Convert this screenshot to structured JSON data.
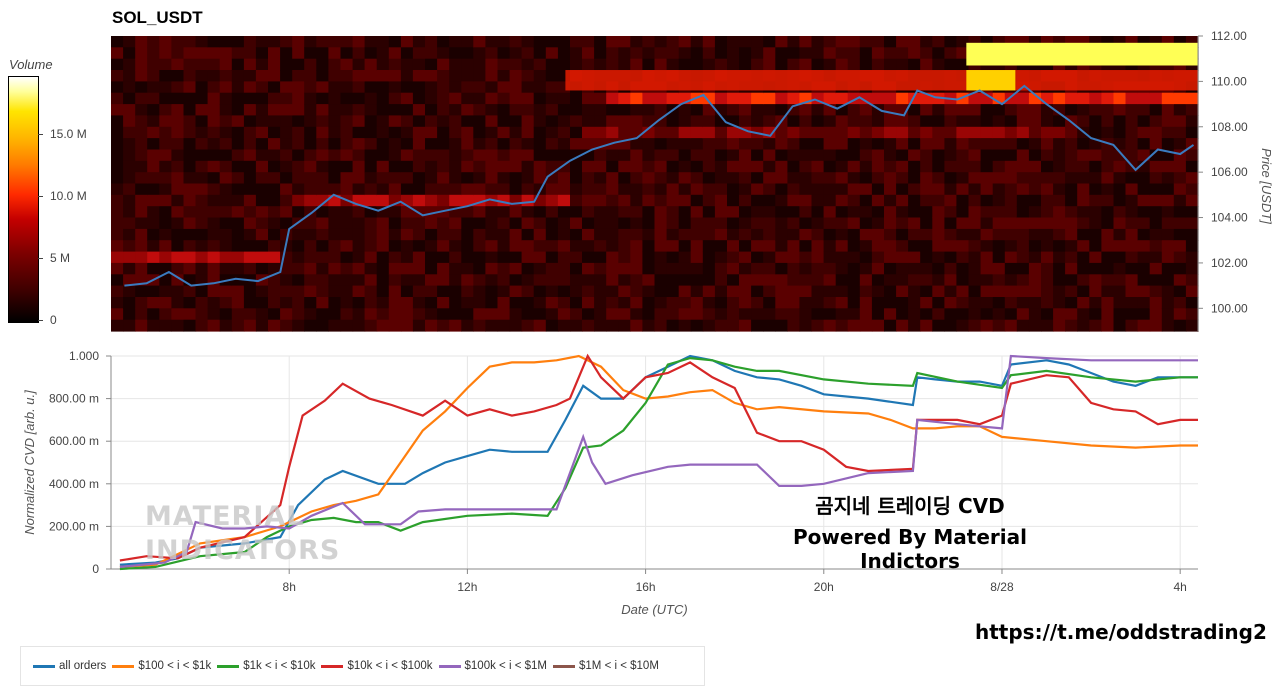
{
  "title": "SOL_USDT",
  "colorbar": {
    "title": "Volume",
    "ticks": [
      "15.0 M",
      "10.0 M",
      "5 M",
      "0"
    ],
    "colors": [
      "#000000",
      "#7d0000",
      "#c40000",
      "#ff2a00",
      "#ff7a00",
      "#ffb000",
      "#ffe500",
      "#ffff9a",
      "#ffffff"
    ]
  },
  "watermark": {
    "line1": "곰지네 트레이딩 CVD",
    "line2": "Powered By Material Indictors"
  },
  "logo_text": {
    "line1": "MATERIAL",
    "line2": "INDICATORS"
  },
  "telegram_link": "https://t.me/oddstrading2",
  "chart_data": [
    {
      "type": "heatmap",
      "title": "SOL_USDT",
      "ylabel": "Price [USDT]",
      "ylim": [
        99,
        112
      ],
      "y_ticks": [
        "112.00",
        "110.00",
        "108.00",
        "106.00",
        "104.00",
        "102.00",
        "100.00"
      ],
      "y_tick_values": [
        112,
        110,
        108,
        106,
        104,
        102,
        100
      ],
      "colorbar_range": [
        0,
        19000000
      ],
      "series": [
        {
          "name": "Price",
          "color": "#3a7bbf",
          "time_hours": [
            4.3,
            4.8,
            5.3,
            5.8,
            6.3,
            6.8,
            7.3,
            7.8,
            8.0,
            8.5,
            9.0,
            9.5,
            10.0,
            10.5,
            11.0,
            11.5,
            12.0,
            12.5,
            13.0,
            13.5,
            13.8,
            14.3,
            14.8,
            15.3,
            15.8,
            16.3,
            16.8,
            17.3,
            17.8,
            18.3,
            18.8,
            19.3,
            19.8,
            20.3,
            20.8,
            21.3,
            21.8,
            22.1,
            22.5,
            23.0,
            23.5,
            24.0,
            24.5,
            25.0,
            25.5,
            26.0,
            26.5,
            27.0,
            27.5,
            28.0,
            28.3
          ],
          "values": [
            101.0,
            101.1,
            101.6,
            101.0,
            101.1,
            101.3,
            101.2,
            101.6,
            103.5,
            104.2,
            105.0,
            104.6,
            104.3,
            104.7,
            104.1,
            104.3,
            104.5,
            104.8,
            104.6,
            104.7,
            105.8,
            106.5,
            107.0,
            107.3,
            107.5,
            108.3,
            109.0,
            109.4,
            108.2,
            107.8,
            107.6,
            108.9,
            109.2,
            108.8,
            109.3,
            108.7,
            108.5,
            109.6,
            109.3,
            109.2,
            109.6,
            109.0,
            109.8,
            109.0,
            108.3,
            107.5,
            107.2,
            106.1,
            107.0,
            106.8,
            107.2
          ]
        }
      ]
    },
    {
      "type": "line",
      "xlabel": "Date (UTC)",
      "ylabel": "Normalized CVD [arb. u.]",
      "ylim": [
        0,
        1.0
      ],
      "xlim": [
        4.0,
        28.4
      ],
      "y_ticks": [
        "1.000",
        "800.00 m",
        "600.00 m",
        "400.00 m",
        "200.00 m",
        "0"
      ],
      "y_tick_values": [
        1.0,
        0.8,
        0.6,
        0.4,
        0.2,
        0
      ],
      "x_ticks": [
        "8h",
        "12h",
        "16h",
        "20h",
        "8/28",
        "4h"
      ],
      "x_tick_values": [
        8,
        12,
        16,
        20,
        24,
        28
      ],
      "legend_position": "bottom",
      "series": [
        {
          "name": "all orders",
          "color": "#1f77b4",
          "x": [
            4.2,
            5.0,
            5.5,
            6.0,
            7.0,
            7.8,
            8.2,
            8.8,
            9.2,
            10.0,
            10.6,
            11.0,
            11.5,
            12.0,
            12.5,
            13.0,
            13.8,
            14.2,
            14.6,
            15.0,
            15.5,
            16.0,
            16.5,
            17.0,
            17.5,
            18.0,
            18.5,
            19.0,
            19.5,
            20.0,
            21.0,
            22.0,
            22.1,
            22.5,
            23.0,
            23.5,
            24.0,
            24.2,
            25.0,
            25.5,
            26.0,
            26.5,
            27.0,
            27.5,
            28.0,
            28.4
          ],
          "values": [
            0.02,
            0.03,
            0.05,
            0.1,
            0.12,
            0.15,
            0.3,
            0.42,
            0.46,
            0.4,
            0.4,
            0.45,
            0.5,
            0.53,
            0.56,
            0.55,
            0.55,
            0.7,
            0.86,
            0.8,
            0.8,
            0.9,
            0.95,
            1.0,
            0.98,
            0.93,
            0.9,
            0.89,
            0.86,
            0.82,
            0.8,
            0.77,
            0.9,
            0.89,
            0.88,
            0.88,
            0.86,
            0.96,
            0.98,
            0.96,
            0.92,
            0.88,
            0.86,
            0.9,
            0.9,
            0.9
          ]
        },
        {
          "name": "$100 < i < $1k",
          "color": "#ff7f0e",
          "x": [
            4.2,
            5.0,
            6.0,
            7.0,
            7.8,
            8.5,
            9.0,
            9.5,
            10.0,
            10.5,
            11.0,
            11.5,
            12.0,
            12.5,
            13.0,
            13.5,
            14.0,
            14.5,
            15.0,
            15.5,
            16.0,
            16.5,
            17.0,
            17.5,
            18.0,
            18.5,
            19.0,
            20.0,
            21.0,
            21.5,
            22.0,
            22.5,
            23.0,
            23.5,
            24.0,
            25.0,
            26.0,
            27.0,
            28.0,
            28.4
          ],
          "values": [
            0.01,
            0.02,
            0.12,
            0.15,
            0.2,
            0.27,
            0.3,
            0.32,
            0.35,
            0.5,
            0.65,
            0.74,
            0.85,
            0.95,
            0.97,
            0.97,
            0.98,
            1.0,
            0.95,
            0.84,
            0.8,
            0.81,
            0.83,
            0.84,
            0.78,
            0.75,
            0.76,
            0.74,
            0.73,
            0.7,
            0.66,
            0.66,
            0.67,
            0.67,
            0.62,
            0.6,
            0.58,
            0.57,
            0.58,
            0.58
          ]
        },
        {
          "name": "$1k < i < $10k",
          "color": "#2ca02c",
          "x": [
            4.2,
            5.0,
            6.0,
            7.0,
            7.5,
            8.0,
            8.5,
            9.0,
            9.5,
            10.0,
            10.5,
            11.0,
            12.0,
            13.0,
            13.8,
            14.2,
            14.6,
            15.0,
            15.5,
            16.0,
            16.5,
            17.0,
            17.5,
            18.0,
            18.5,
            19.0,
            20.0,
            21.0,
            22.0,
            22.1,
            23.0,
            24.0,
            24.2,
            25.0,
            26.0,
            27.0,
            28.0,
            28.4
          ],
          "values": [
            0.0,
            0.01,
            0.06,
            0.08,
            0.15,
            0.2,
            0.23,
            0.24,
            0.22,
            0.22,
            0.18,
            0.22,
            0.25,
            0.26,
            0.25,
            0.38,
            0.57,
            0.58,
            0.65,
            0.78,
            0.96,
            0.99,
            0.98,
            0.95,
            0.93,
            0.93,
            0.89,
            0.87,
            0.86,
            0.92,
            0.88,
            0.85,
            0.91,
            0.93,
            0.9,
            0.88,
            0.9,
            0.9
          ]
        },
        {
          "name": "$10k < i < $100k",
          "color": "#d62728",
          "x": [
            4.2,
            4.8,
            5.5,
            6.0,
            7.0,
            7.8,
            8.0,
            8.3,
            8.8,
            9.2,
            9.8,
            10.3,
            11.0,
            11.5,
            12.0,
            12.5,
            13.0,
            13.5,
            14.0,
            14.3,
            14.7,
            15.0,
            15.5,
            16.0,
            16.5,
            17.0,
            17.5,
            18.0,
            18.5,
            19.0,
            19.5,
            20.0,
            20.5,
            21.0,
            22.0,
            22.1,
            23.0,
            23.5,
            24.0,
            24.2,
            25.0,
            25.5,
            26.0,
            26.5,
            27.0,
            27.5,
            28.0,
            28.4
          ],
          "values": [
            0.04,
            0.06,
            0.05,
            0.1,
            0.15,
            0.3,
            0.48,
            0.72,
            0.79,
            0.87,
            0.8,
            0.77,
            0.72,
            0.79,
            0.72,
            0.75,
            0.72,
            0.74,
            0.77,
            0.8,
            1.0,
            0.9,
            0.8,
            0.9,
            0.92,
            0.97,
            0.9,
            0.85,
            0.64,
            0.6,
            0.6,
            0.56,
            0.48,
            0.46,
            0.47,
            0.7,
            0.7,
            0.68,
            0.72,
            0.87,
            0.91,
            0.9,
            0.78,
            0.75,
            0.74,
            0.68,
            0.7,
            0.7
          ]
        },
        {
          "name": "$100k < i < $1M",
          "color": "#9467bd",
          "x": [
            4.2,
            5.2,
            5.7,
            5.9,
            6.5,
            7.0,
            7.5,
            8.0,
            8.5,
            9.2,
            9.7,
            10.5,
            10.9,
            11.5,
            12.5,
            13.5,
            14.0,
            14.3,
            14.6,
            14.8,
            15.1,
            15.7,
            16.5,
            17.0,
            17.5,
            18.0,
            18.5,
            19.0,
            19.5,
            20.0,
            21.0,
            22.0,
            22.1,
            23.0,
            23.5,
            24.0,
            24.2,
            25.0,
            26.0,
            27.0,
            28.0,
            28.4
          ],
          "values": [
            0.01,
            0.03,
            0.08,
            0.22,
            0.19,
            0.19,
            0.2,
            0.19,
            0.25,
            0.31,
            0.21,
            0.21,
            0.27,
            0.28,
            0.28,
            0.28,
            0.28,
            0.45,
            0.62,
            0.5,
            0.4,
            0.44,
            0.48,
            0.49,
            0.49,
            0.49,
            0.49,
            0.39,
            0.39,
            0.4,
            0.45,
            0.46,
            0.7,
            0.68,
            0.67,
            0.66,
            1.0,
            0.99,
            0.98,
            0.98,
            0.98,
            0.98
          ]
        },
        {
          "name": "$1M < i < $10M",
          "color": "#8c564b",
          "x": [],
          "values": []
        }
      ]
    }
  ]
}
